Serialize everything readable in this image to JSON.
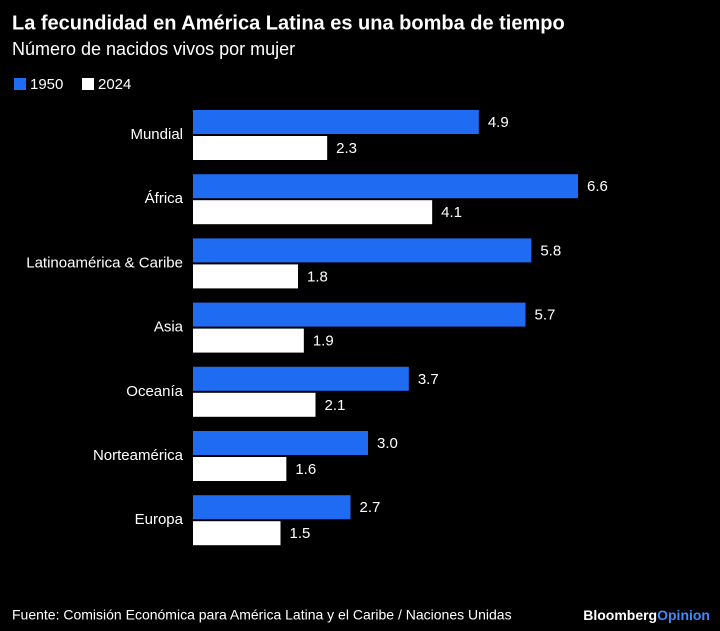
{
  "chart_data": {
    "type": "bar",
    "orientation": "horizontal",
    "title": "La fecundidad en América Latina es una bomba de tiempo",
    "subtitle": "Número de nacidos vivos por mujer",
    "categories": [
      "Mundial",
      "África",
      "Latinoamérica & Caribe",
      "Asia",
      "Oceanía",
      "Norteamérica",
      "Europa"
    ],
    "series": [
      {
        "name": "1950",
        "color": "#1f6bf2",
        "values": [
          4.9,
          6.6,
          5.8,
          5.7,
          3.7,
          3.0,
          2.7
        ],
        "value_labels": [
          "4.9",
          "6.6",
          "5.8",
          "5.7",
          "3.7",
          "3.0",
          "2.7"
        ]
      },
      {
        "name": "2024",
        "color": "#ffffff",
        "values": [
          2.3,
          4.1,
          1.8,
          1.9,
          2.1,
          1.6,
          1.5
        ]
      }
    ],
    "source": "Fuente: Comisión Económica para América Latina y el Caribe / Naciones Unidas",
    "brand": [
      "Bloomberg",
      "Opinion"
    ]
  }
}
